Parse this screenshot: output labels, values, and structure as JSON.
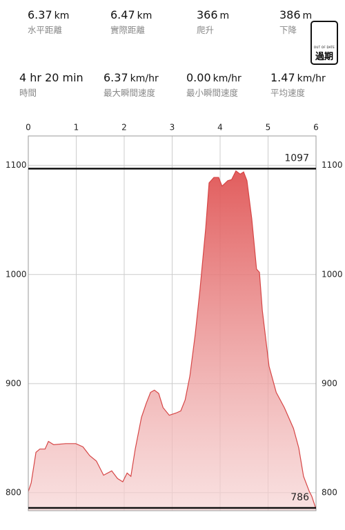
{
  "stats": [
    {
      "value": "6.37",
      "unit": "km",
      "label": "水平距離"
    },
    {
      "value": "6.47",
      "unit": "km",
      "label": "實際距離"
    },
    {
      "value": "366",
      "unit": "m",
      "label": "爬升"
    },
    {
      "value": "386",
      "unit": "m",
      "label": "下降"
    },
    {
      "value": "4 hr 20 min",
      "unit": "",
      "label": "時間"
    },
    {
      "value": "6.37",
      "unit": "km/hr",
      "label": "最大瞬間速度"
    },
    {
      "value": "0.00",
      "unit": "km/hr",
      "label": "最小瞬間速度"
    },
    {
      "value": "1.47",
      "unit": "km/hr",
      "label": "平均速度"
    }
  ],
  "badge": {
    "small": "OUT OF DATE",
    "text": "過期"
  },
  "chart_data": {
    "type": "area",
    "color": "#d64545",
    "x": [
      0,
      0.06,
      0.16,
      0.24,
      0.35,
      0.42,
      0.53,
      0.78,
      0.99,
      1.14,
      1.28,
      1.42,
      1.57,
      1.74,
      1.86,
      1.97,
      2.06,
      2.14,
      2.23,
      2.36,
      2.46,
      2.55,
      2.63,
      2.72,
      2.81,
      2.94,
      3.08,
      3.18,
      3.27,
      3.37,
      3.48,
      3.58,
      3.7,
      3.77,
      3.87,
      3.97,
      4.04,
      4.16,
      4.24,
      4.33,
      4.42,
      4.49,
      4.56,
      4.66,
      4.76,
      4.82,
      4.88,
      5.02,
      5.17,
      5.34,
      5.53,
      5.64,
      5.74,
      5.86,
      5.91,
      6
    ],
    "values": [
      801,
      809,
      837,
      840,
      840,
      847,
      844,
      845,
      845,
      842,
      834,
      829,
      816,
      820,
      813,
      810,
      818,
      815,
      840,
      869,
      882,
      892,
      894,
      891,
      878,
      871,
      873,
      875,
      885,
      907,
      945,
      986,
      1043,
      1084,
      1089,
      1089,
      1081,
      1086,
      1087,
      1095,
      1092,
      1094,
      1086,
      1051,
      1005,
      1002,
      967,
      916,
      892,
      878,
      859,
      841,
      815,
      801,
      797,
      785
    ],
    "xlim": [
      0,
      6
    ],
    "xticks": [
      0,
      1,
      2,
      3,
      4,
      5,
      6
    ],
    "ylim": [
      783.5,
      1127
    ],
    "yticks": [
      800,
      900,
      1000,
      1100
    ],
    "grid": true,
    "ref_lines": [
      {
        "value": 1097,
        "label": "1097"
      },
      {
        "value": 786,
        "label": "786"
      }
    ]
  }
}
